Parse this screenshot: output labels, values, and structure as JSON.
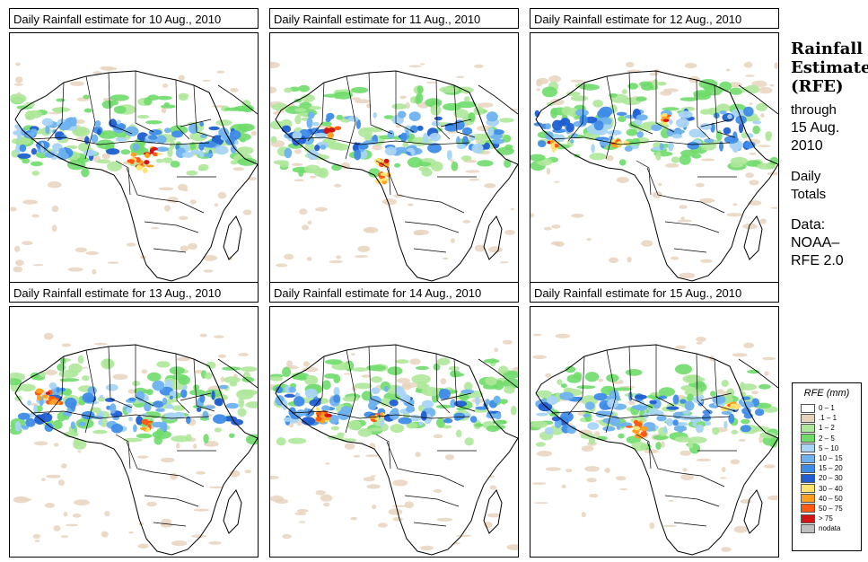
{
  "panels": [
    {
      "title": "Daily Rainfall estimate for  10 Aug., 2010",
      "pattern": "central-heavy"
    },
    {
      "title": "Daily Rainfall estimate for  11 Aug., 2010",
      "pattern": "cameroon-heavy"
    },
    {
      "title": "Daily Rainfall estimate for  12 Aug., 2010",
      "pattern": "west-coast-heavy"
    },
    {
      "title": "Daily Rainfall estimate for  13 Aug., 2010",
      "pattern": "sahel-west"
    },
    {
      "title": "Daily Rainfall estimate for  14 Aug., 2010",
      "pattern": "nigeria-heavy"
    },
    {
      "title": "Daily Rainfall estimate for  15 Aug., 2010",
      "pattern": "sudan-heavy"
    }
  ],
  "sidebar": {
    "heading_line1": "Rainfall",
    "heading_line2": "Estimate",
    "heading_line3": "(RFE)",
    "through_label": "through",
    "date_line1": "15 Aug.",
    "date_line2": "2010",
    "totals_line1": "Daily",
    "totals_line2": "Totals",
    "data_line1": "Data:",
    "data_line2": "NOAA–",
    "data_line3": "RFE 2.0"
  },
  "legend": {
    "title": "RFE (mm)",
    "items": [
      {
        "label": "0 – 1",
        "color": "#ffffff"
      },
      {
        "label": ".1 – 1",
        "color": "#e6d3bd"
      },
      {
        "label": "1 – 2",
        "color": "#aee89a"
      },
      {
        "label": "2 – 5",
        "color": "#6fdc6a"
      },
      {
        "label": "5 – 10",
        "color": "#a8d4f5"
      },
      {
        "label": "10 – 15",
        "color": "#6fb2ef"
      },
      {
        "label": "15 – 20",
        "color": "#3f8ce8"
      },
      {
        "label": "20 – 30",
        "color": "#1f5fd2"
      },
      {
        "label": "30 – 40",
        "color": "#ffe36e"
      },
      {
        "label": "40 – 50",
        "color": "#ffa020"
      },
      {
        "label": "50 – 75",
        "color": "#ff5a14"
      },
      {
        "label": "> 75",
        "color": "#d21414"
      },
      {
        "label": "nodata",
        "color": "#bfbfbf"
      }
    ]
  }
}
